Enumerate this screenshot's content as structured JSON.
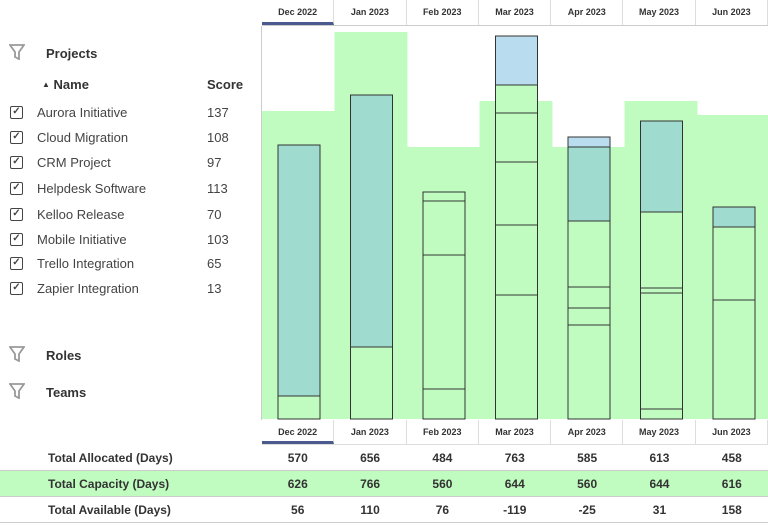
{
  "months": [
    "Dec 2022",
    "Jan 2023",
    "Feb 2023",
    "Mar 2023",
    "Apr 2023",
    "May 2023",
    "Jun 2023"
  ],
  "selected_month": "Dec 2022",
  "filters": {
    "projects": "Projects",
    "roles": "Roles",
    "teams": "Teams",
    "icon": "funnel-icon"
  },
  "table": {
    "name_header": "Name",
    "score_header": "Score",
    "sort": "ascending",
    "rows": [
      {
        "name": "Aurora Initiative",
        "score": "137",
        "checked": true
      },
      {
        "name": "Cloud Migration",
        "score": "108",
        "checked": true
      },
      {
        "name": "CRM Project",
        "score": "97",
        "checked": true
      },
      {
        "name": "Helpdesk Software",
        "score": "113",
        "checked": true
      },
      {
        "name": "Kelloo Release",
        "score": "70",
        "checked": true
      },
      {
        "name": "Mobile Initiative",
        "score": "103",
        "checked": true
      },
      {
        "name": "Trello Integration",
        "score": "65",
        "checked": true
      },
      {
        "name": "Zapier Integration",
        "score": "13",
        "checked": true
      }
    ]
  },
  "totals": {
    "allocated": {
      "label": "Total Allocated (Days)",
      "values": [
        "570",
        "656",
        "484",
        "763",
        "585",
        "613",
        "458"
      ]
    },
    "capacity": {
      "label": "Total Capacity (Days)",
      "values": [
        "626",
        "766",
        "560",
        "644",
        "560",
        "644",
        "616"
      ]
    },
    "available": {
      "label": "Total Available (Days)",
      "values": [
        "56",
        "110",
        "76",
        "-119",
        "-25",
        "31",
        "158"
      ]
    }
  },
  "colors": {
    "capacity": "#c0fcc0",
    "over_capacity": "#b9dcee",
    "highlight": "#9fdccf",
    "accent": "#4a5a8f"
  }
}
